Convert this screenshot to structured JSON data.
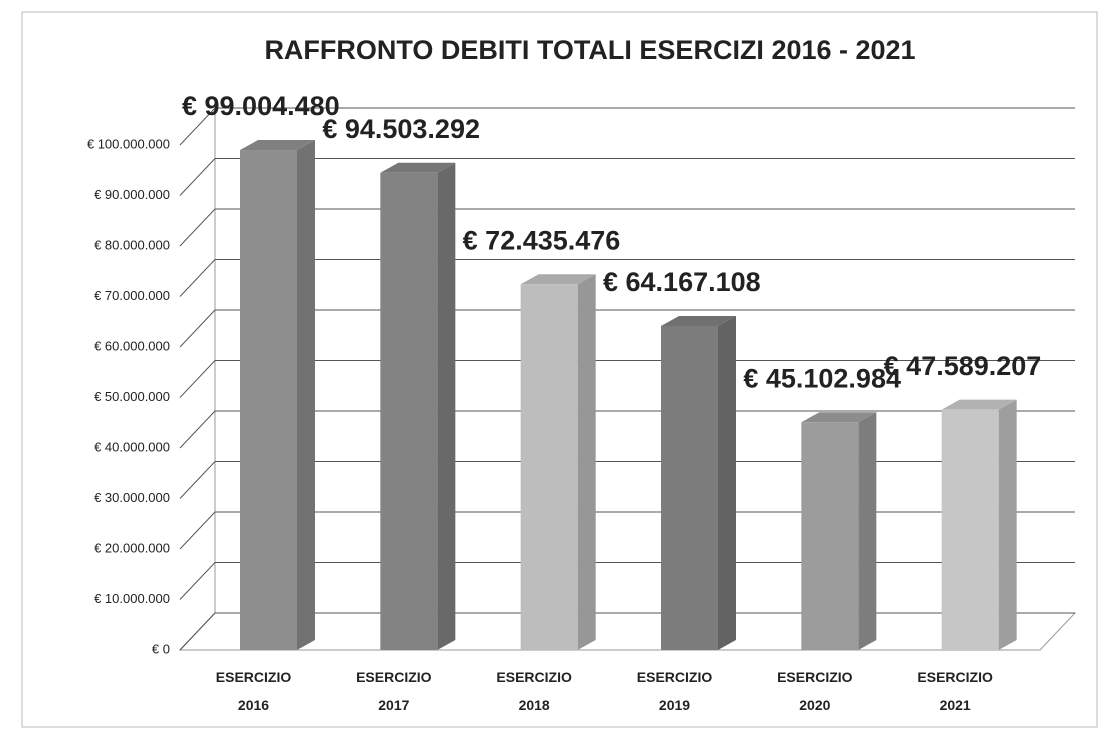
{
  "chart_data": {
    "type": "bar3d",
    "title": "RAFFRONTO DEBITI TOTALI ESERCIZI 2016 - 2021",
    "categories": [
      "ESERCIZIO 2016",
      "ESERCIZIO 2017",
      "ESERCIZIO 2018",
      "ESERCIZIO 2019",
      "ESERCIZIO 2020",
      "ESERCIZIO 2021"
    ],
    "values": [
      99004480,
      94503292,
      72435476,
      64167108,
      45102984,
      47589207
    ],
    "value_labels": [
      "€ 99.004.480",
      "€ 94.503.292",
      "€ 72.435.476",
      "€ 64.167.108",
      "€ 45.102.984",
      "€ 47.589.207"
    ],
    "colors": [
      "#8e8e8e",
      "#838383",
      "#bdbdbd",
      "#7c7c7c",
      "#9c9c9c",
      "#c6c6c6"
    ],
    "ylim": [
      0,
      100000000
    ],
    "yticks": [
      {
        "value": 0,
        "label": "€ 0"
      },
      {
        "value": 10000000,
        "label": "€ 10.000.000"
      },
      {
        "value": 20000000,
        "label": "€ 20.000.000"
      },
      {
        "value": 30000000,
        "label": "€ 30.000.000"
      },
      {
        "value": 40000000,
        "label": "€ 40.000.000"
      },
      {
        "value": 50000000,
        "label": "€ 50.000.000"
      },
      {
        "value": 60000000,
        "label": "€ 60.000.000"
      },
      {
        "value": 70000000,
        "label": "€ 70.000.000"
      },
      {
        "value": 80000000,
        "label": "€ 80.000.000"
      },
      {
        "value": 90000000,
        "label": "€ 90.000.000"
      },
      {
        "value": 100000000,
        "label": "€ 100.000.000"
      }
    ],
    "grid": true
  }
}
